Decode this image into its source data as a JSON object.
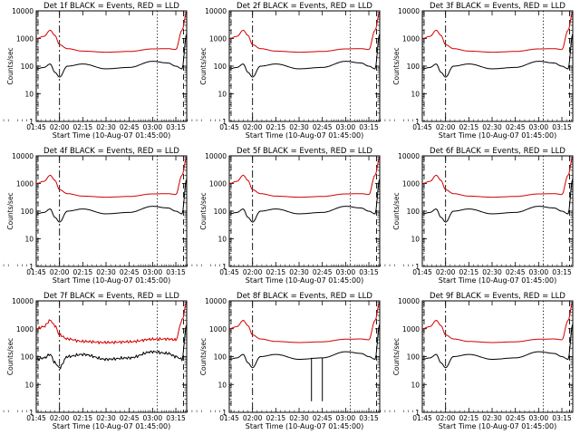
{
  "figure": {
    "panels": [
      {
        "title": "Det 1f BLACK = Events, RED = LLD",
        "xlabel": "Start Time (10-Aug-07 01:45:00)",
        "ylabel": "Counts/sec",
        "variant": "standard"
      },
      {
        "title": "Det 2f BLACK = Events, RED = LLD",
        "xlabel": "Start Time (10-Aug-07 01:45:00)",
        "ylabel": "Counts/sec",
        "variant": "standard"
      },
      {
        "title": "Det 3f BLACK = Events, RED = LLD",
        "xlabel": "Start Time (10-Aug-07 01:45:00)",
        "ylabel": "Counts/sec",
        "variant": "standard"
      },
      {
        "title": "Det 4f BLACK = Events, RED = LLD",
        "xlabel": "Start Time (10-Aug-07 01:45:00)",
        "ylabel": "Counts/sec",
        "variant": "standard"
      },
      {
        "title": "Det 5f BLACK = Events, RED = LLD",
        "xlabel": "Start Time (10-Aug-07 01:45:00)",
        "ylabel": "Counts/sec",
        "variant": "standard"
      },
      {
        "title": "Det 6f BLACK = Events, RED = LLD",
        "xlabel": "Start Time (10-Aug-07 01:45:00)",
        "ylabel": "Counts/sec",
        "variant": "standard"
      },
      {
        "title": "Det 7f BLACK = Events, RED = LLD",
        "xlabel": "Start Time (10-Aug-07 01:45:00)",
        "ylabel": "Counts/sec",
        "variant": "noisy"
      },
      {
        "title": "Det 8f BLACK = Events, RED = LLD",
        "xlabel": "Start Time (10-Aug-07 01:45:00)",
        "ylabel": "Counts/sec",
        "variant": "dips"
      },
      {
        "title": "Det 9f BLACK = Events, RED = LLD",
        "xlabel": "Start Time (10-Aug-07 01:45:00)",
        "ylabel": "Counts/sec",
        "variant": "standard"
      }
    ]
  },
  "chart_data": [
    {
      "type": "line",
      "scale": "log",
      "ylim": [
        1,
        10000
      ],
      "yticks": [
        1,
        10,
        100,
        1000,
        10000
      ],
      "ytick_labels": [
        "1",
        "10",
        "100",
        "1000",
        "10000"
      ],
      "xlim": [
        "01:45",
        "03:22"
      ],
      "xticks": [
        "01:45",
        "02:00",
        "02:15",
        "02:30",
        "02:45",
        "03:00",
        "03:15"
      ],
      "series": [
        {
          "color": "#d40000",
          "x": [
            "01:45",
            "01:50",
            "01:54",
            "01:57",
            "02:00",
            "02:05",
            "02:15",
            "02:30",
            "02:45",
            "03:00",
            "03:10",
            "03:15",
            "03:19",
            "03:22"
          ],
          "values": [
            1000,
            1200,
            2000,
            1300,
            600,
            430,
            350,
            320,
            340,
            420,
            430,
            400,
            2000,
            9000
          ]
        },
        {
          "color": "#000000",
          "x": [
            "01:45",
            "01:50",
            "01:54",
            "01:57",
            "02:00",
            "02:05",
            "02:15",
            "02:30",
            "02:45",
            "03:00",
            "03:10",
            "03:15",
            "03:19",
            "03:22"
          ],
          "values": [
            80,
            90,
            120,
            60,
            40,
            100,
            120,
            80,
            90,
            150,
            130,
            100,
            80,
            1500
          ]
        }
      ],
      "vlines": [
        {
          "x": "02:00",
          "style": "dashdot"
        },
        {
          "x": "03:03",
          "style": "dotted"
        },
        {
          "x": "03:20",
          "style": "dashed"
        }
      ]
    }
  ]
}
